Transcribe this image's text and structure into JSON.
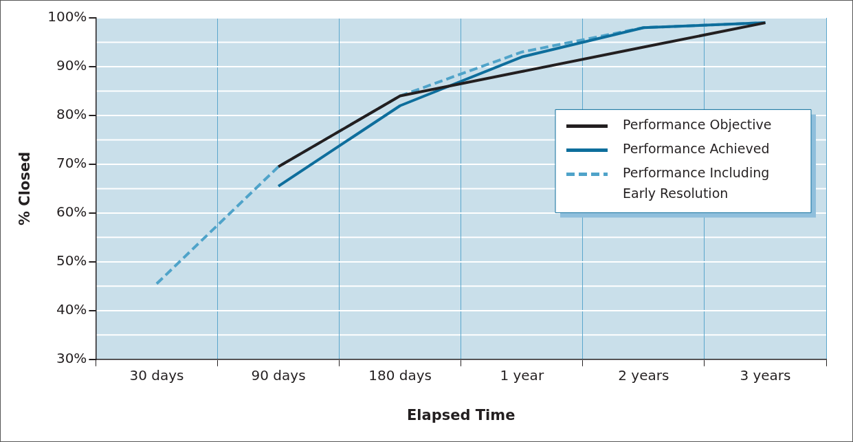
{
  "chart_data": {
    "type": "line",
    "xlabel": "Elapsed Time",
    "ylabel": "% Closed",
    "categories": [
      "30 days",
      "90 days",
      "180 days",
      "1 year",
      "2 years",
      "3 years"
    ],
    "ylim": [
      30,
      100
    ],
    "yticks": [
      {
        "value": 30,
        "label": "30%"
      },
      {
        "value": 40,
        "label": "40%"
      },
      {
        "value": 50,
        "label": "50%"
      },
      {
        "value": 60,
        "label": "60%"
      },
      {
        "value": 70,
        "label": "70%"
      },
      {
        "value": 80,
        "label": "80%"
      },
      {
        "value": 90,
        "label": "90%"
      },
      {
        "value": 100,
        "label": "100%"
      }
    ],
    "grid": true,
    "legend": "right",
    "marker": "none",
    "series": [
      {
        "name": "Performance Objective",
        "color": "#231f20",
        "line_style": "solid",
        "values": [
          null,
          69.5,
          84,
          89,
          94,
          99
        ]
      },
      {
        "name": "Performance Achieved",
        "color": "#0e6e9c",
        "line_style": "solid",
        "values": [
          null,
          65.5,
          82,
          92,
          98,
          99
        ]
      },
      {
        "name": "Performance Including Early Resolution",
        "color": "#4fa3c9",
        "line_style": "dashed",
        "values": [
          45.5,
          69.5,
          84,
          93,
          98,
          99
        ]
      }
    ]
  }
}
